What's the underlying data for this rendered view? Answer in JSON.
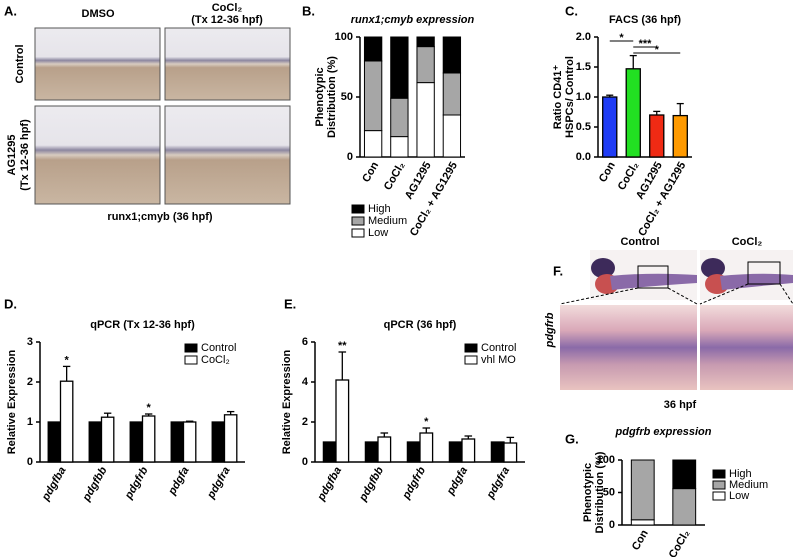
{
  "letters": [
    "A.",
    "B.",
    "C.",
    "D.",
    "E.",
    "F.",
    "G."
  ],
  "panel_a": {
    "col_1": "DMSO",
    "col_2": "CoCl₂",
    "col_2_note": "(Tx 12-36 hpf)",
    "row_1": "Control",
    "row_2": "AG1295",
    "row_2_note": "(Tx 12-36 hpf)",
    "caption": "runx1;cmyb (36 hpf)"
  },
  "panel_f": {
    "col_1": "Control",
    "col_2": "CoCl₂",
    "row_label": "pdgfrb",
    "caption": "36 hpf"
  },
  "chart_data": [
    {
      "type": "bar",
      "stacked": true,
      "title": "runx1;cmyb expression",
      "ylabel": [
        "Phenotypic",
        "Distribution (%)"
      ],
      "categories": [
        "Con",
        "CoCl₂",
        "AG1295",
        "CoCl₂ + AG1295"
      ],
      "series": [
        {
          "name": "Low",
          "color": "#ffffff",
          "values": [
            22,
            17,
            62,
            35
          ]
        },
        {
          "name": "Medium",
          "color": "#a6a6a6",
          "values": [
            58,
            32,
            30,
            35
          ]
        },
        {
          "name": "High",
          "color": "#000000",
          "values": [
            20,
            51,
            8,
            30
          ]
        }
      ],
      "ylim": [
        0,
        100
      ],
      "yticks": [
        0,
        50,
        100
      ],
      "legend": "below"
    },
    {
      "type": "bar",
      "title": "FACS (36 hpf)",
      "ylabel": [
        "Ratio CD41⁺",
        "HSPCs/ Control"
      ],
      "categories": [
        "Con",
        "CoCl₂",
        "AG1295",
        "CoCl₂ + AG1295"
      ],
      "values": [
        1.0,
        1.47,
        0.7,
        0.69
      ],
      "errors": [
        0.03,
        0.22,
        0.06,
        0.2
      ],
      "colors": [
        "#1f3cf5",
        "#22e022",
        "#f02a14",
        "#ff9a00"
      ],
      "ylim": [
        0,
        2
      ],
      "yticks": [
        {
          "value": 0,
          "label": "0.0"
        },
        {
          "value": 0.5,
          "label": "0.5"
        },
        {
          "value": 1,
          "label": "1.0"
        },
        {
          "value": 1.5,
          "label": "1.5"
        },
        {
          "value": 2,
          "label": "2.0"
        }
      ],
      "brackets": [
        {
          "text": "*",
          "between": [
            0,
            1
          ]
        },
        {
          "text": "***",
          "between": [
            1,
            2
          ]
        },
        {
          "text": "*",
          "between": [
            1,
            3
          ]
        }
      ]
    },
    {
      "type": "bar",
      "title": "qPCR (Tx 12-36 hpf)",
      "ylabel": "Relative Expression",
      "categories": [
        "pdgfba",
        "pdgfbb",
        "pdgfrb",
        "pdgfa",
        "pdgfra"
      ],
      "series": [
        {
          "name": "Control",
          "color": "#000000",
          "values": [
            1,
            1,
            1,
            1,
            1
          ]
        },
        {
          "name": "CoCl₂",
          "color": "#ffffff",
          "values": [
            2.02,
            1.12,
            1.15,
            1.0,
            1.18
          ],
          "errors": [
            0.37,
            0.1,
            0.05,
            0.02,
            0.08
          ]
        }
      ],
      "ylim": [
        0,
        3
      ],
      "yticks": [
        0,
        1,
        2,
        3
      ],
      "legend": "upper right",
      "annotations": [
        {
          "text": "*",
          "series": 1,
          "category": 0
        },
        {
          "text": "*",
          "series": 1,
          "category": 2
        }
      ]
    },
    {
      "type": "bar",
      "title": "qPCR (36 hpf)",
      "ylabel": "Relative Expression",
      "categories": [
        "pdgfba",
        "pdgfbb",
        "pdgfrb",
        "pdgfa",
        "pdgfra"
      ],
      "series": [
        {
          "name": "Control",
          "color": "#000000",
          "values": [
            1,
            1,
            1,
            1,
            1
          ]
        },
        {
          "name": "vhl MO",
          "color": "#ffffff",
          "values": [
            4.1,
            1.25,
            1.45,
            1.15,
            0.95
          ],
          "errors": [
            1.4,
            0.2,
            0.25,
            0.15,
            0.28
          ]
        }
      ],
      "ylim": [
        0,
        6
      ],
      "yticks": [
        0,
        2,
        4,
        6
      ],
      "legend": "upper right",
      "annotations": [
        {
          "text": "**",
          "series": 1,
          "category": 0
        },
        {
          "text": "*",
          "series": 1,
          "category": 2
        }
      ]
    },
    {
      "type": "bar",
      "stacked": true,
      "title": "pdgfrb expression",
      "ylabel": [
        "Phenotypic",
        "Distribution (%)"
      ],
      "categories": [
        "Con",
        "CoCl₂"
      ],
      "series": [
        {
          "name": "Low",
          "color": "#ffffff",
          "values": [
            8,
            0
          ]
        },
        {
          "name": "Medium",
          "color": "#a6a6a6",
          "values": [
            92,
            56
          ]
        },
        {
          "name": "High",
          "color": "#000000",
          "values": [
            0,
            44
          ]
        }
      ],
      "ylim": [
        0,
        100
      ],
      "yticks": [
        0,
        50,
        100
      ],
      "legend": "right"
    }
  ]
}
